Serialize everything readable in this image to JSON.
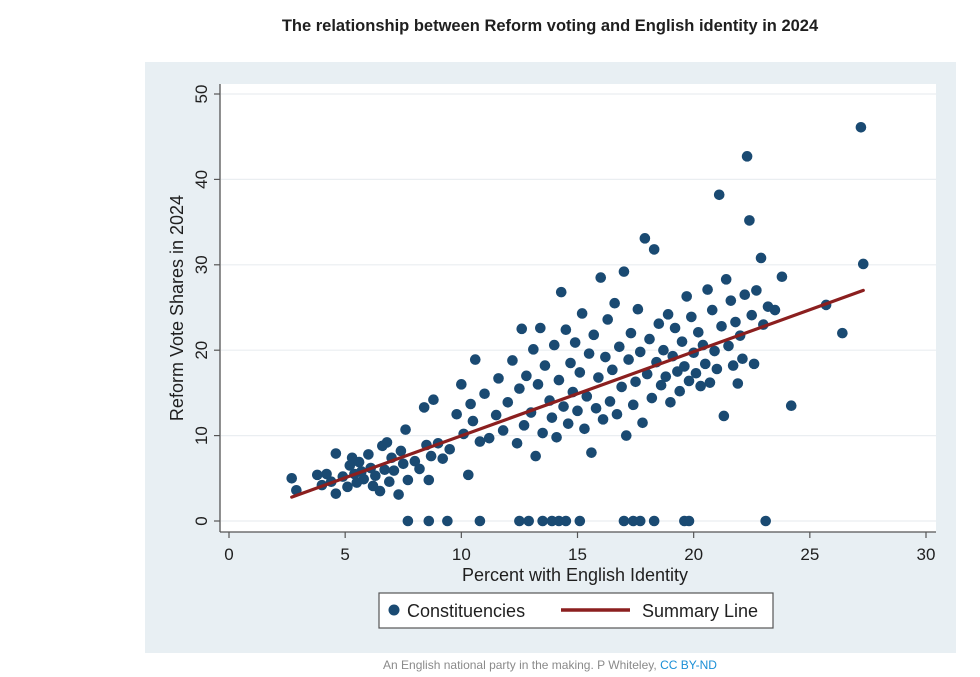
{
  "title": "The relationship between Reform voting and English identity in 2024",
  "caption": {
    "text": "An English national party in the making. P Whiteley, ",
    "link": "CC BY-ND"
  },
  "colors": {
    "point": "#1a4a72",
    "line": "#8b1f1f",
    "plot_bg": "#ffffff",
    "outer_bg": "#e8eff3"
  },
  "chart_data": {
    "type": "scatter",
    "title": "The relationship between Reform voting and English identity in 2024",
    "xlabel": "Percent with English Identity",
    "ylabel": "Reform Vote Shares in 2024",
    "xlim": [
      0,
      30
    ],
    "ylim": [
      0,
      50
    ],
    "xticks": [
      "0",
      "5",
      "10",
      "15",
      "20",
      "25",
      "30"
    ],
    "yticks": [
      "0",
      "10",
      "20",
      "30",
      "40",
      "50"
    ],
    "grid": true,
    "legend": {
      "position": "bottom",
      "entries": [
        "Constituencies",
        "Summary Line"
      ]
    },
    "summary_line": {
      "x": [
        2.7,
        27.3
      ],
      "y": [
        2.8,
        27.0
      ]
    },
    "series": [
      {
        "name": "Constituencies",
        "points": [
          [
            2.7,
            5.0
          ],
          [
            2.9,
            3.6
          ],
          [
            3.8,
            5.4
          ],
          [
            4.0,
            4.2
          ],
          [
            4.2,
            5.5
          ],
          [
            4.4,
            4.6
          ],
          [
            4.6,
            3.2
          ],
          [
            4.6,
            7.9
          ],
          [
            4.9,
            5.2
          ],
          [
            5.1,
            4.0
          ],
          [
            5.2,
            6.5
          ],
          [
            5.3,
            7.4
          ],
          [
            5.4,
            5.5
          ],
          [
            5.5,
            4.5
          ],
          [
            5.6,
            6.9
          ],
          [
            5.7,
            5.8
          ],
          [
            5.8,
            4.9
          ],
          [
            6.0,
            7.8
          ],
          [
            6.1,
            6.2
          ],
          [
            6.2,
            4.1
          ],
          [
            6.3,
            5.3
          ],
          [
            6.5,
            3.5
          ],
          [
            6.6,
            8.8
          ],
          [
            6.7,
            6.0
          ],
          [
            6.8,
            9.2
          ],
          [
            6.9,
            4.6
          ],
          [
            7.0,
            7.4
          ],
          [
            7.1,
            5.9
          ],
          [
            7.3,
            3.1
          ],
          [
            7.4,
            8.2
          ],
          [
            7.5,
            6.7
          ],
          [
            7.6,
            10.7
          ],
          [
            7.7,
            4.8
          ],
          [
            8.0,
            7.0
          ],
          [
            8.2,
            6.1
          ],
          [
            8.4,
            13.3
          ],
          [
            8.5,
            8.9
          ],
          [
            8.6,
            4.8
          ],
          [
            8.7,
            7.6
          ],
          [
            8.8,
            14.2
          ],
          [
            9.0,
            9.1
          ],
          [
            9.2,
            7.3
          ],
          [
            9.5,
            8.4
          ],
          [
            9.8,
            12.5
          ],
          [
            10.0,
            16.0
          ],
          [
            10.1,
            10.2
          ],
          [
            10.3,
            5.4
          ],
          [
            10.4,
            13.7
          ],
          [
            10.5,
            11.7
          ],
          [
            10.6,
            18.9
          ],
          [
            10.8,
            9.3
          ],
          [
            11.0,
            14.9
          ],
          [
            11.2,
            9.7
          ],
          [
            11.5,
            12.4
          ],
          [
            11.6,
            16.7
          ],
          [
            11.8,
            10.6
          ],
          [
            12.0,
            13.9
          ],
          [
            12.2,
            18.8
          ],
          [
            12.4,
            9.1
          ],
          [
            12.5,
            15.5
          ],
          [
            12.6,
            22.5
          ],
          [
            12.7,
            11.2
          ],
          [
            12.8,
            17.0
          ],
          [
            13.0,
            12.7
          ],
          [
            13.1,
            20.1
          ],
          [
            13.2,
            7.6
          ],
          [
            13.3,
            16.0
          ],
          [
            13.4,
            22.6
          ],
          [
            13.5,
            10.3
          ],
          [
            13.6,
            18.2
          ],
          [
            13.8,
            14.1
          ],
          [
            13.9,
            12.1
          ],
          [
            14.0,
            20.6
          ],
          [
            14.1,
            9.8
          ],
          [
            14.2,
            16.5
          ],
          [
            14.3,
            26.8
          ],
          [
            14.4,
            13.4
          ],
          [
            14.5,
            22.4
          ],
          [
            14.6,
            11.4
          ],
          [
            14.7,
            18.5
          ],
          [
            14.8,
            15.1
          ],
          [
            14.9,
            20.9
          ],
          [
            15.0,
            12.9
          ],
          [
            15.1,
            17.4
          ],
          [
            15.2,
            24.3
          ],
          [
            15.3,
            10.8
          ],
          [
            15.4,
            14.6
          ],
          [
            15.5,
            19.6
          ],
          [
            15.6,
            8.0
          ],
          [
            15.7,
            21.8
          ],
          [
            15.8,
            13.2
          ],
          [
            15.9,
            16.8
          ],
          [
            16.0,
            28.5
          ],
          [
            16.1,
            11.9
          ],
          [
            16.2,
            19.2
          ],
          [
            16.3,
            23.6
          ],
          [
            16.4,
            14.0
          ],
          [
            16.5,
            17.7
          ],
          [
            16.6,
            25.5
          ],
          [
            16.7,
            12.5
          ],
          [
            16.8,
            20.4
          ],
          [
            16.9,
            15.7
          ],
          [
            17.0,
            29.2
          ],
          [
            17.1,
            10.0
          ],
          [
            17.2,
            18.9
          ],
          [
            17.3,
            22.0
          ],
          [
            17.4,
            13.6
          ],
          [
            17.5,
            16.3
          ],
          [
            17.6,
            24.8
          ],
          [
            17.7,
            19.8
          ],
          [
            17.8,
            11.5
          ],
          [
            17.9,
            33.1
          ],
          [
            18.0,
            17.2
          ],
          [
            18.1,
            21.3
          ],
          [
            18.2,
            14.4
          ],
          [
            18.3,
            31.8
          ],
          [
            18.4,
            18.6
          ],
          [
            18.5,
            23.1
          ],
          [
            18.6,
            15.9
          ],
          [
            18.7,
            20.0
          ],
          [
            18.8,
            16.9
          ],
          [
            18.9,
            24.2
          ],
          [
            19.0,
            13.9
          ],
          [
            19.1,
            19.3
          ],
          [
            19.2,
            22.6
          ],
          [
            19.3,
            17.5
          ],
          [
            19.4,
            15.2
          ],
          [
            19.5,
            21.0
          ],
          [
            19.6,
            18.1
          ],
          [
            19.7,
            26.3
          ],
          [
            19.8,
            16.4
          ],
          [
            19.9,
            23.9
          ],
          [
            20.0,
            19.7
          ],
          [
            20.1,
            17.3
          ],
          [
            20.2,
            22.1
          ],
          [
            20.3,
            15.8
          ],
          [
            20.4,
            20.6
          ],
          [
            20.5,
            18.4
          ],
          [
            20.6,
            27.1
          ],
          [
            20.7,
            16.2
          ],
          [
            20.8,
            24.7
          ],
          [
            20.9,
            19.9
          ],
          [
            21.0,
            17.8
          ],
          [
            21.1,
            38.2
          ],
          [
            21.2,
            22.8
          ],
          [
            21.3,
            12.3
          ],
          [
            21.4,
            28.3
          ],
          [
            21.5,
            20.5
          ],
          [
            21.6,
            25.8
          ],
          [
            21.7,
            18.2
          ],
          [
            21.8,
            23.3
          ],
          [
            21.9,
            16.1
          ],
          [
            22.0,
            21.7
          ],
          [
            22.1,
            19.0
          ],
          [
            22.2,
            26.5
          ],
          [
            22.3,
            42.7
          ],
          [
            22.4,
            35.2
          ],
          [
            22.5,
            24.1
          ],
          [
            22.6,
            18.4
          ],
          [
            22.7,
            27.0
          ],
          [
            22.9,
            30.8
          ],
          [
            23.0,
            23.0
          ],
          [
            23.2,
            25.1
          ],
          [
            23.5,
            24.7
          ],
          [
            23.8,
            28.6
          ],
          [
            24.2,
            13.5
          ],
          [
            25.7,
            25.3
          ],
          [
            26.4,
            22.0
          ],
          [
            27.2,
            46.1
          ],
          [
            27.3,
            30.1
          ],
          [
            7.7,
            0
          ],
          [
            8.6,
            0
          ],
          [
            9.4,
            0
          ],
          [
            10.8,
            0
          ],
          [
            12.5,
            0
          ],
          [
            12.9,
            0
          ],
          [
            13.5,
            0
          ],
          [
            13.9,
            0
          ],
          [
            14.2,
            0
          ],
          [
            14.5,
            0
          ],
          [
            15.1,
            0
          ],
          [
            17.0,
            0
          ],
          [
            17.4,
            0
          ],
          [
            17.7,
            0
          ],
          [
            18.3,
            0
          ],
          [
            19.6,
            0
          ],
          [
            19.8,
            0
          ],
          [
            23.1,
            0
          ]
        ]
      }
    ]
  }
}
